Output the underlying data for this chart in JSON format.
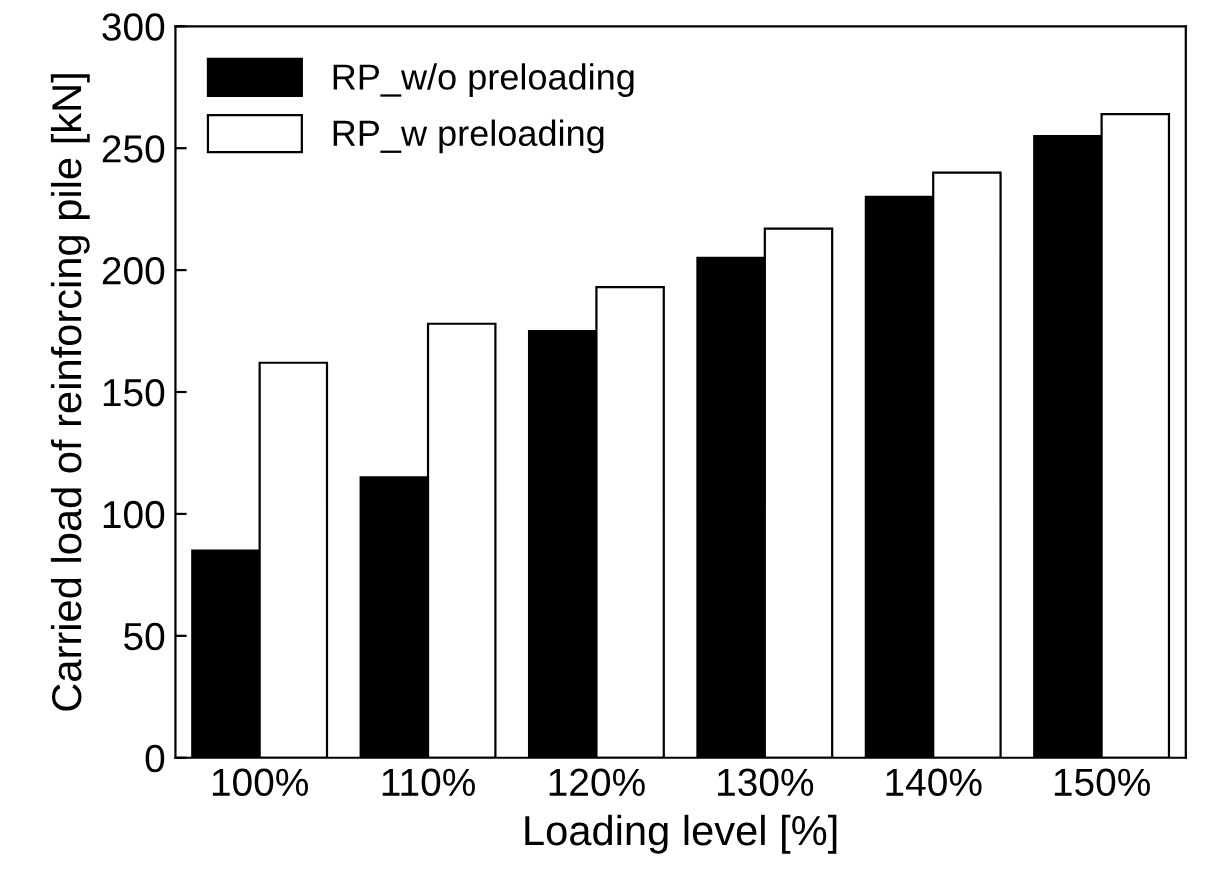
{
  "chart_data": {
    "type": "bar",
    "xlabel": "Loading level [%]",
    "ylabel": "Carried load of reinforcing pile [kN]",
    "categories": [
      "100%",
      "110%",
      "120%",
      "130%",
      "140%",
      "150%"
    ],
    "series": [
      {
        "name": "RP_w/o preloading",
        "color": "#000000",
        "values": [
          85,
          115,
          175,
          205,
          230,
          255
        ]
      },
      {
        "name": "RP_w preloading",
        "color": "#ffffff",
        "values": [
          162,
          178,
          193,
          217,
          240,
          264
        ]
      }
    ],
    "ylim": [
      0,
      300
    ],
    "yticks": [
      0,
      50,
      100,
      150,
      200,
      250,
      300
    ],
    "legend": "top left",
    "grid": false
  }
}
